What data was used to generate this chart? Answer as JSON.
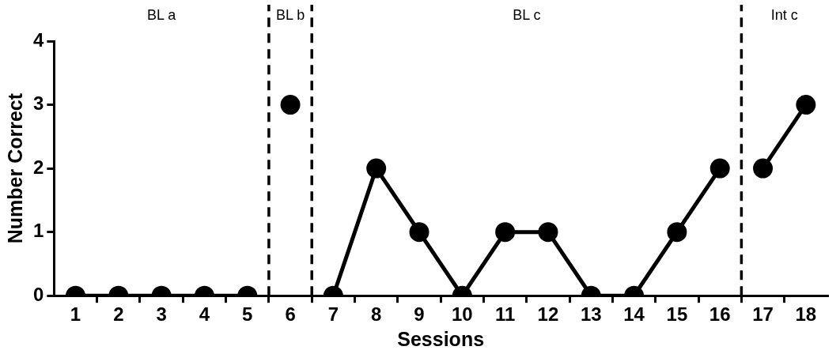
{
  "chart_data": {
    "type": "line",
    "xlabel": "Sessions",
    "ylabel": "Number Correct",
    "x": [
      1,
      2,
      3,
      4,
      5,
      6,
      7,
      8,
      9,
      10,
      11,
      12,
      13,
      14,
      15,
      16,
      17,
      18
    ],
    "series": [
      {
        "color": "#000000",
        "values": [
          0,
          0,
          0,
          0,
          0,
          null,
          null,
          null,
          null,
          null,
          null,
          null,
          null,
          null,
          null,
          null,
          null,
          null
        ]
      },
      {
        "color": "#000000",
        "values": [
          null,
          null,
          null,
          null,
          null,
          3,
          null,
          null,
          null,
          null,
          null,
          null,
          null,
          null,
          null,
          null,
          null,
          null
        ]
      },
      {
        "color": "#000000",
        "values": [
          null,
          null,
          null,
          null,
          null,
          null,
          0,
          2,
          1,
          0,
          1,
          1,
          0,
          0,
          1,
          2,
          null,
          null
        ]
      },
      {
        "color": "#000000",
        "values": [
          null,
          null,
          null,
          null,
          null,
          null,
          null,
          null,
          null,
          null,
          null,
          null,
          null,
          null,
          null,
          null,
          2,
          3
        ]
      }
    ],
    "xlim": [
      0.5,
      18.5
    ],
    "xticks": [
      1,
      {
        "value": 1.5,
        "label": null
      },
      2,
      {
        "value": 2.5,
        "label": null
      },
      3,
      {
        "value": 3.5,
        "label": null
      },
      4,
      {
        "value": 4.5,
        "label": null
      },
      5,
      {
        "value": 5.5,
        "label": null
      },
      6,
      {
        "value": 6.5,
        "label": null
      },
      7,
      {
        "value": 7.5,
        "label": null
      },
      8,
      {
        "value": 8.5,
        "label": null
      },
      9,
      {
        "value": 9.5,
        "label": null
      },
      10,
      {
        "value": 10.5,
        "label": null
      },
      11,
      {
        "value": 11.5,
        "label": null
      },
      12,
      {
        "value": 12.5,
        "label": null
      },
      13,
      {
        "value": 13.5,
        "label": null
      },
      14,
      {
        "value": 14.5,
        "label": null
      },
      15,
      {
        "value": 15.5,
        "label": null
      },
      16,
      {
        "value": 16.5,
        "label": null
      },
      17,
      {
        "value": 17.5,
        "label": null
      },
      18
    ],
    "ylim": [
      0,
      4
    ],
    "yticks": [
      0,
      1,
      2,
      3,
      4
    ],
    "grid": false,
    "legend": false,
    "marker": "circle",
    "line_style": "solid",
    "ref_lines": [
      {
        "axis": "x",
        "value": 5.5,
        "color": "#000000",
        "line_style": "dashed"
      },
      {
        "axis": "x",
        "value": 6.5,
        "color": "#000000",
        "line_style": "dashed"
      },
      {
        "axis": "x",
        "value": 16.5,
        "color": "#000000",
        "line_style": "dashed"
      }
    ],
    "annotations": [
      "BL a",
      "BL b",
      "BL c",
      "Int c"
    ]
  }
}
